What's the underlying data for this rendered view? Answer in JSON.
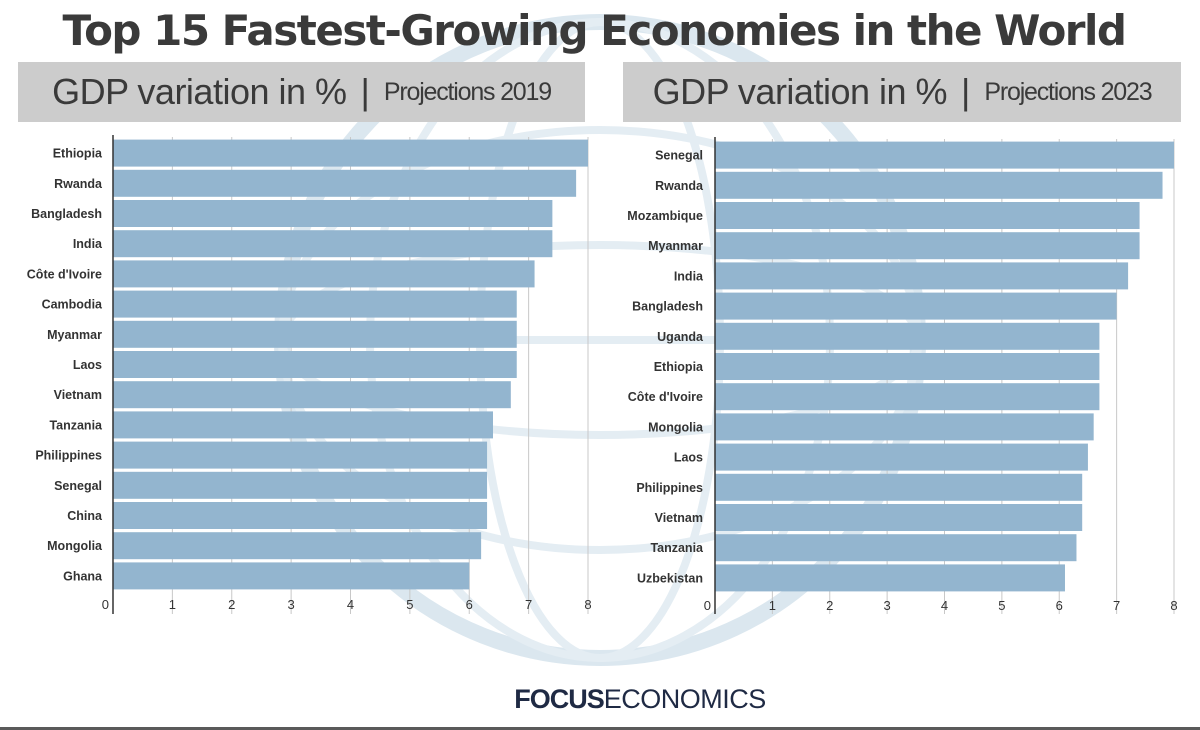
{
  "title": "Top 15 Fastest-Growing Economies in the World",
  "footer": {
    "brand_bold": "FOCUS",
    "brand_regular": "ECONOMICS"
  },
  "colors": {
    "bar": "#93b5cf",
    "axis": "#333333",
    "grid": "#c8c8c8",
    "header_bg": "#cccccc",
    "globe": "#dbe7ef"
  },
  "chart_data": [
    {
      "type": "bar",
      "orientation": "horizontal",
      "title": "GDP variation in %",
      "subtitle": "Projections 2019",
      "categories": [
        "Ethiopia",
        "Rwanda",
        "Bangladesh",
        "India",
        "Côte d'Ivoire",
        "Cambodia",
        "Myanmar",
        "Laos",
        "Vietnam",
        "Tanzania",
        "Philippines",
        "Senegal",
        "China",
        "Mongolia",
        "Ghana"
      ],
      "values": [
        8.0,
        7.8,
        7.4,
        7.4,
        7.1,
        6.8,
        6.8,
        6.8,
        6.7,
        6.4,
        6.3,
        6.3,
        6.3,
        6.2,
        6.0
      ],
      "xlim": [
        0,
        8
      ],
      "xticks": [
        "0",
        "1",
        "2",
        "3",
        "4",
        "5",
        "6",
        "7",
        "8"
      ],
      "grid": true
    },
    {
      "type": "bar",
      "orientation": "horizontal",
      "title": "GDP variation in %",
      "subtitle": "Projections 2023",
      "categories": [
        "Senegal",
        "Rwanda",
        "Mozambique",
        "Myanmar",
        "India",
        "Bangladesh",
        "Uganda",
        "Ethiopia",
        "Côte d'Ivoire",
        "Mongolia",
        "Laos",
        "Philippines",
        "Vietnam",
        "Tanzania",
        "Uzbekistan"
      ],
      "values": [
        8.0,
        7.8,
        7.4,
        7.4,
        7.2,
        7.0,
        6.7,
        6.7,
        6.7,
        6.6,
        6.5,
        6.4,
        6.4,
        6.3,
        6.1
      ],
      "xlim": [
        0,
        8
      ],
      "xticks": [
        "0",
        "1",
        "2",
        "3",
        "4",
        "5",
        "6",
        "7",
        "8"
      ],
      "grid": true
    }
  ]
}
